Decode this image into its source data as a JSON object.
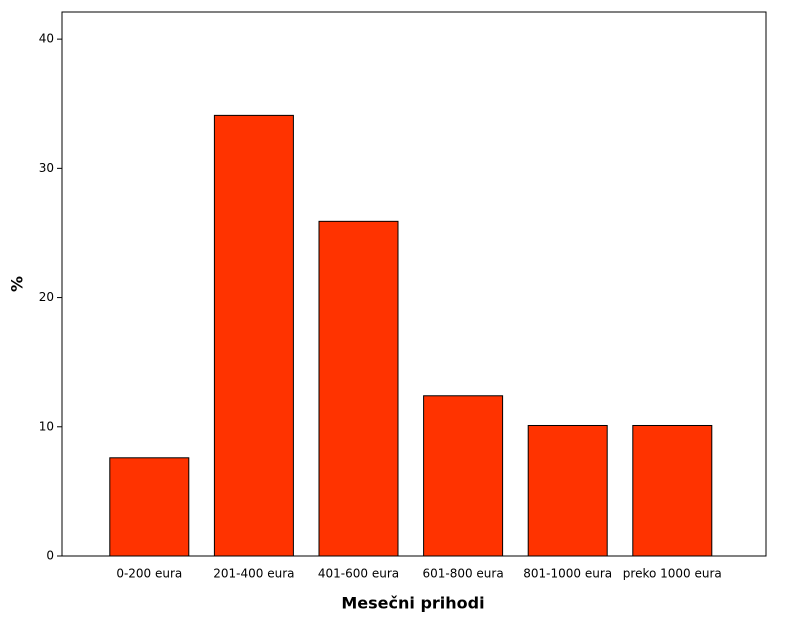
{
  "chart_data": {
    "type": "bar",
    "x_label": "Mesečni prihodi",
    "y_label": "%",
    "categories": [
      "0-200 eura",
      "201-400 eura",
      "401-600 eura",
      "601-800 eura",
      "801-1000 eura",
      "preko 1000 eura"
    ],
    "values": [
      7.6,
      34.1,
      25.9,
      12.4,
      10.1,
      10.1
    ],
    "color": "#ff3300",
    "ylim": [
      0,
      42.1
    ],
    "yticks": [
      0,
      10,
      20,
      30,
      40
    ],
    "grid": false
  }
}
